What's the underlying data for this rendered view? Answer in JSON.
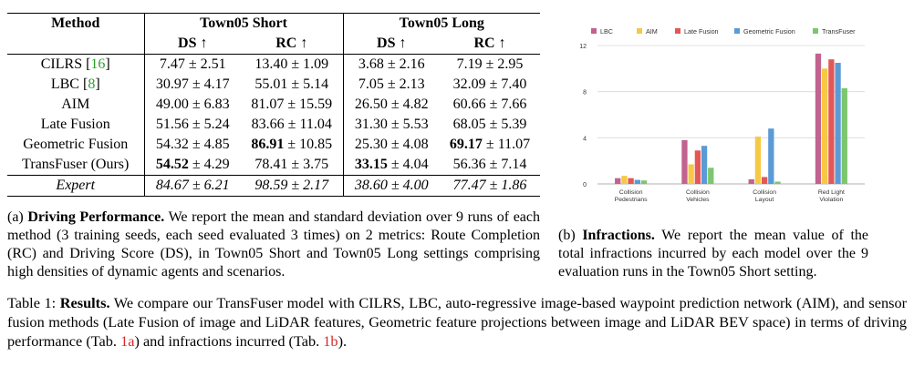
{
  "table": {
    "header_method": "Method",
    "group1": "Town05 Short",
    "group2": "Town05 Long",
    "sub": [
      "DS ↑",
      "RC ↑",
      "DS ↑",
      "RC ↑"
    ],
    "rows": [
      {
        "name": "CILRS",
        "cite": "16",
        "cells": [
          {
            "mean": "7.47",
            "std": "2.51"
          },
          {
            "mean": "13.40",
            "std": "1.09"
          },
          {
            "mean": "3.68",
            "std": "2.16"
          },
          {
            "mean": "7.19",
            "std": "2.95"
          }
        ]
      },
      {
        "name": "LBC",
        "cite": "8",
        "cells": [
          {
            "mean": "30.97",
            "std": "4.17"
          },
          {
            "mean": "55.01",
            "std": "5.14"
          },
          {
            "mean": "7.05",
            "std": "2.13"
          },
          {
            "mean": "32.09",
            "std": "7.40"
          }
        ]
      },
      {
        "name": "AIM",
        "cite": "",
        "cells": [
          {
            "mean": "49.00",
            "std": "6.83"
          },
          {
            "mean": "81.07",
            "std": "15.59"
          },
          {
            "mean": "26.50",
            "std": "4.82"
          },
          {
            "mean": "60.66",
            "std": "7.66"
          }
        ]
      },
      {
        "name": "Late Fusion",
        "cite": "",
        "cells": [
          {
            "mean": "51.56",
            "std": "5.24"
          },
          {
            "mean": "83.66",
            "std": "11.04"
          },
          {
            "mean": "31.30",
            "std": "5.53"
          },
          {
            "mean": "68.05",
            "std": "5.39"
          }
        ]
      },
      {
        "name": "Geometric Fusion",
        "cite": "",
        "cells": [
          {
            "mean": "54.32",
            "std": "4.85"
          },
          {
            "mean": "86.91",
            "std": "10.85",
            "bold": true
          },
          {
            "mean": "25.30",
            "std": "4.08"
          },
          {
            "mean": "69.17",
            "std": "11.07",
            "bold": true
          }
        ]
      },
      {
        "name": "TransFuser (Ours)",
        "cite": "",
        "cells": [
          {
            "mean": "54.52",
            "std": "4.29",
            "bold": true
          },
          {
            "mean": "78.41",
            "std": "3.75"
          },
          {
            "mean": "33.15",
            "std": "4.04",
            "bold": true
          },
          {
            "mean": "56.36",
            "std": "7.14"
          }
        ]
      }
    ],
    "expert": {
      "name": "Expert",
      "cells": [
        {
          "mean": "84.67",
          "std": "6.21"
        },
        {
          "mean": "98.59",
          "std": "2.17"
        },
        {
          "mean": "38.60",
          "std": "4.00"
        },
        {
          "mean": "77.47",
          "std": "1.86"
        }
      ]
    }
  },
  "caption_a": {
    "label": "(a) ",
    "bold": "Driving Performance.",
    "text": " We report the mean and standard deviation over 9 runs of each method (3 training seeds, each seed evaluated 3 times) on 2 metrics: Route Completion (RC) and Driving Score (DS), in Town05 Short and Town05 Long settings comprising high densities of dynamic agents and scenarios."
  },
  "caption_b": {
    "label": "(b) ",
    "bold": "Infractions.",
    "text": " We report the mean value of the total infractions incurred by each model over the 9 evaluation runs in the Town05 Short setting."
  },
  "caption_main": {
    "label": "Table 1: ",
    "bold": "Results.",
    "text1": " We compare our TransFuser model with CILRS, LBC, auto-regressive image-based waypoint prediction network (AIM), and sensor fusion methods (Late Fusion of image and LiDAR features, Geometric feature projections between image and LiDAR BEV space) in terms of driving performance (Tab. ",
    "ref1": "1a",
    "text2": ") and infractions incurred (Tab. ",
    "ref2": "1b",
    "text3": ")."
  },
  "chart_data": {
    "type": "bar",
    "categories": [
      [
        "Collision",
        "Pedestrians"
      ],
      [
        "Collision",
        "Vehicles"
      ],
      [
        "Collision",
        "Layout"
      ],
      [
        "Red Light",
        "Violation"
      ]
    ],
    "series": [
      {
        "name": "LBC",
        "color": "#c2628f",
        "values": [
          0.5,
          3.8,
          0.4,
          11.3
        ]
      },
      {
        "name": "AIM",
        "color": "#f7c845",
        "values": [
          0.7,
          1.7,
          4.1,
          10.0
        ]
      },
      {
        "name": "Late Fusion",
        "color": "#e45757",
        "values": [
          0.5,
          2.9,
          0.6,
          10.8
        ]
      },
      {
        "name": "Geometric Fusion",
        "color": "#5b9bd5",
        "values": [
          0.35,
          3.3,
          4.8,
          10.5
        ]
      },
      {
        "name": "TransFuser",
        "color": "#7cc66e",
        "values": [
          0.3,
          1.4,
          0.2,
          8.3
        ]
      }
    ],
    "yticks": [
      0,
      4,
      8,
      12
    ],
    "ylim": [
      0,
      12
    ],
    "grid": true,
    "legend": "top"
  }
}
